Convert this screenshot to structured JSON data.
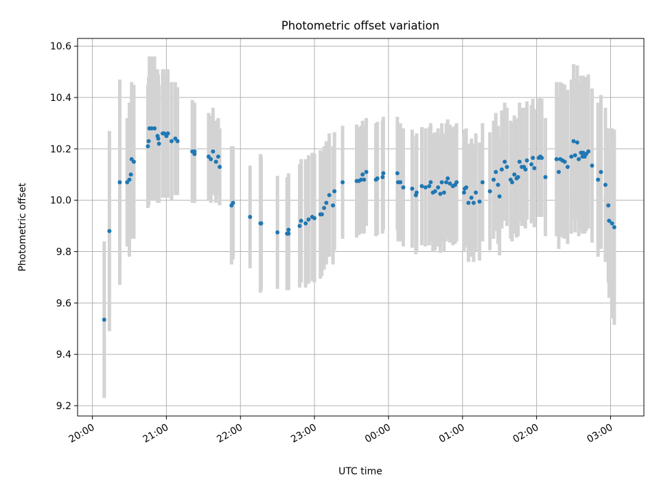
{
  "chart_data": {
    "type": "scatter",
    "title": "Photometric offset variation",
    "xlabel": "UTC time",
    "ylabel": "Photometric offset",
    "x_unit": "hours of UTC time on a continuous axis (24.0 = 00:00, 27.0 = 03:00)",
    "xlim": [
      19.8,
      27.45
    ],
    "ylim": [
      9.16,
      10.63
    ],
    "x_ticks": [
      20,
      21,
      22,
      23,
      24,
      25,
      26,
      27
    ],
    "x_tick_labels": [
      "20:00",
      "21:00",
      "22:00",
      "23:00",
      "00:00",
      "01:00",
      "02:00",
      "03:00"
    ],
    "y_ticks": [
      9.2,
      9.4,
      9.6,
      9.8,
      10.0,
      10.2,
      10.4,
      10.6
    ],
    "y_tick_labels": [
      "9.2",
      "9.4",
      "9.6",
      "9.8",
      "10.0",
      "10.2",
      "10.4",
      "10.6"
    ],
    "grid": true,
    "colors": {
      "points": "#1f77b4",
      "errorbars": "#d3d3d3",
      "grid": "#b0b0b0"
    },
    "series": [
      {
        "x": [
          20.16,
          20.23,
          20.37,
          20.47,
          20.5,
          20.52,
          20.53,
          20.56,
          20.75,
          20.76,
          20.77,
          20.8,
          20.84,
          20.88,
          20.89,
          20.9,
          20.95,
          20.97,
          21.0,
          21.02,
          21.07,
          21.12,
          21.15,
          21.35,
          21.38,
          21.38,
          21.57,
          21.6,
          21.63,
          21.67,
          21.7,
          21.72,
          21.88,
          21.9,
          22.13,
          22.27,
          22.28,
          22.5,
          22.63,
          22.65,
          22.65,
          22.8,
          22.82,
          22.88,
          22.92,
          22.97,
          23.0,
          23.08,
          23.1,
          23.13,
          23.16,
          23.2,
          23.25,
          23.27,
          23.38,
          23.57,
          23.6,
          23.63,
          23.65,
          23.67,
          23.7,
          23.83,
          23.85,
          23.92,
          23.93,
          24.12,
          24.13,
          24.16,
          24.2,
          24.32,
          24.37,
          24.38,
          24.45,
          24.5,
          24.55,
          24.57,
          24.6,
          24.63,
          24.67,
          24.7,
          24.72,
          24.75,
          24.78,
          24.8,
          24.83,
          24.87,
          24.9,
          24.92,
          25.02,
          25.03,
          25.05,
          25.08,
          25.12,
          25.15,
          25.18,
          25.23,
          25.27,
          25.37,
          25.42,
          25.45,
          25.48,
          25.5,
          25.53,
          25.57,
          25.6,
          25.65,
          25.67,
          25.7,
          25.73,
          25.75,
          25.77,
          25.8,
          25.83,
          25.85,
          25.87,
          25.93,
          25.95,
          25.97,
          26.03,
          26.05,
          26.07,
          26.12,
          26.27,
          26.3,
          26.32,
          26.35,
          26.38,
          26.42,
          26.47,
          26.5,
          26.52,
          26.55,
          26.57,
          26.6,
          26.62,
          26.63,
          26.65,
          26.67,
          26.7,
          26.75,
          26.83,
          26.87,
          26.93,
          26.97,
          26.98,
          27.02,
          27.05
        ],
        "y": [
          9.535,
          9.88,
          10.07,
          10.07,
          10.08,
          10.1,
          10.16,
          10.15,
          10.21,
          10.23,
          10.28,
          10.28,
          10.28,
          10.25,
          10.24,
          10.22,
          10.26,
          10.26,
          10.25,
          10.26,
          10.23,
          10.24,
          10.23,
          10.19,
          10.19,
          10.18,
          10.17,
          10.16,
          10.19,
          10.15,
          10.17,
          10.13,
          9.98,
          9.99,
          9.935,
          9.91,
          9.91,
          9.875,
          9.87,
          9.885,
          9.87,
          9.9,
          9.92,
          9.91,
          9.925,
          9.935,
          9.93,
          9.945,
          9.945,
          9.97,
          9.99,
          10.02,
          9.98,
          10.035,
          10.07,
          10.075,
          10.075,
          10.08,
          10.1,
          10.08,
          10.11,
          10.08,
          10.085,
          10.09,
          10.105,
          10.105,
          10.07,
          10.07,
          10.05,
          10.045,
          10.02,
          10.03,
          10.055,
          10.05,
          10.055,
          10.07,
          10.03,
          10.035,
          10.05,
          10.025,
          10.07,
          10.03,
          10.07,
          10.085,
          10.065,
          10.055,
          10.06,
          10.07,
          10.03,
          10.045,
          10.05,
          9.99,
          10.01,
          9.99,
          10.03,
          9.995,
          10.07,
          10.035,
          10.08,
          10.11,
          10.06,
          10.015,
          10.12,
          10.15,
          10.13,
          10.08,
          10.07,
          10.1,
          10.085,
          10.09,
          10.15,
          10.13,
          10.13,
          10.12,
          10.155,
          10.14,
          10.165,
          10.125,
          10.165,
          10.17,
          10.165,
          10.09,
          10.16,
          10.11,
          10.16,
          10.155,
          10.15,
          10.13,
          10.17,
          10.23,
          10.175,
          10.225,
          10.16,
          10.185,
          10.17,
          10.185,
          10.17,
          10.18,
          10.19,
          10.135,
          10.08,
          10.11,
          10.06,
          9.98,
          9.92,
          9.91,
          9.895
        ],
        "err": [
          0.305,
          0.39,
          0.4,
          0.25,
          0.3,
          0.25,
          0.3,
          0.3,
          0.24,
          0.25,
          0.28,
          0.28,
          0.28,
          0.26,
          0.25,
          0.23,
          0.25,
          0.25,
          0.24,
          0.25,
          0.23,
          0.22,
          0.21,
          0.2,
          0.19,
          0.19,
          0.17,
          0.17,
          0.17,
          0.16,
          0.15,
          0.15,
          0.23,
          0.22,
          0.2,
          0.27,
          0.26,
          0.22,
          0.22,
          0.22,
          0.22,
          0.24,
          0.24,
          0.25,
          0.25,
          0.25,
          0.25,
          0.25,
          0.24,
          0.24,
          0.24,
          0.24,
          0.23,
          0.23,
          0.22,
          0.22,
          0.21,
          0.21,
          0.21,
          0.21,
          0.21,
          0.22,
          0.22,
          0.22,
          0.22,
          0.22,
          0.23,
          0.23,
          0.23,
          0.23,
          0.23,
          0.23,
          0.23,
          0.23,
          0.23,
          0.23,
          0.23,
          0.23,
          0.23,
          0.23,
          0.23,
          0.23,
          0.23,
          0.23,
          0.23,
          0.23,
          0.23,
          0.23,
          0.23,
          0.23,
          0.23,
          0.23,
          0.23,
          0.23,
          0.23,
          0.23,
          0.23,
          0.23,
          0.23,
          0.23,
          0.23,
          0.23,
          0.23,
          0.23,
          0.23,
          0.23,
          0.23,
          0.23,
          0.23,
          0.23,
          0.23,
          0.23,
          0.23,
          0.23,
          0.23,
          0.23,
          0.23,
          0.23,
          0.23,
          0.23,
          0.23,
          0.23,
          0.3,
          0.3,
          0.3,
          0.3,
          0.3,
          0.3,
          0.3,
          0.3,
          0.3,
          0.3,
          0.3,
          0.3,
          0.3,
          0.3,
          0.3,
          0.3,
          0.3,
          0.3,
          0.3,
          0.3,
          0.3,
          0.3,
          0.3,
          0.37,
          0.38
        ]
      }
    ]
  }
}
